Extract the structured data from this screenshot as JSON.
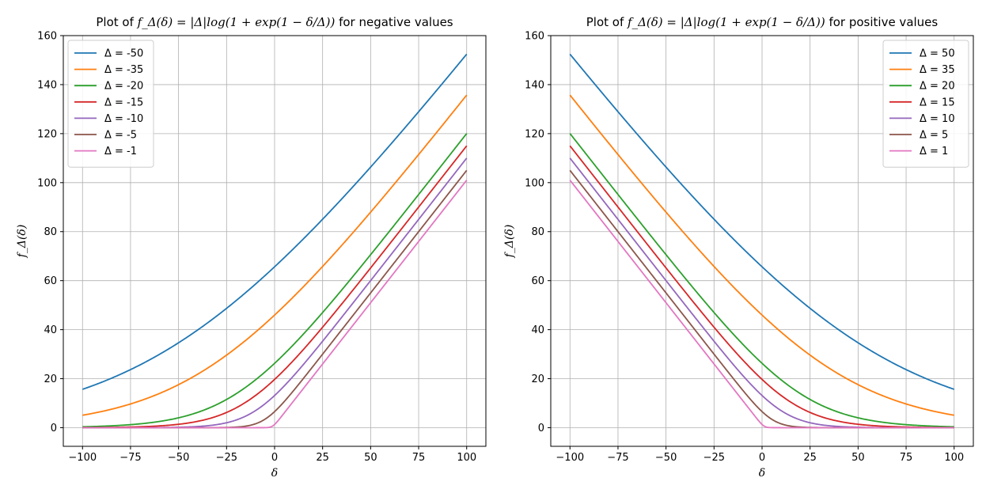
{
  "chart_data": [
    {
      "type": "line",
      "title_prefix": "Plot of ",
      "title_formula": "f_Δ(δ) = |Δ|log(1 + exp(1 − δ/Δ))",
      "title_suffix": " for negative values",
      "xlabel": "δ",
      "ylabel": "f_Δ(δ)",
      "xlim": [
        -110,
        110
      ],
      "ylim": [
        -7.6,
        160
      ],
      "xticks": [
        -100,
        -75,
        -50,
        -25,
        0,
        25,
        50,
        75,
        100
      ],
      "yticks": [
        0,
        20,
        40,
        60,
        80,
        100,
        120,
        140,
        160
      ],
      "grid": true,
      "legend_position": "upper-left",
      "x_range": [
        -100,
        100
      ],
      "series": [
        {
          "name": "Δ = -50",
          "delta": -50,
          "color": "#1f77b4"
        },
        {
          "name": "Δ = -35",
          "delta": -35,
          "color": "#ff7f0e"
        },
        {
          "name": "Δ = -20",
          "delta": -20,
          "color": "#2ca02c"
        },
        {
          "name": "Δ = -15",
          "delta": -15,
          "color": "#d62728"
        },
        {
          "name": "Δ = -10",
          "delta": -10,
          "color": "#9467bd"
        },
        {
          "name": "Δ = -5",
          "delta": -5,
          "color": "#8c564b"
        },
        {
          "name": "Δ = -1",
          "delta": -1,
          "color": "#e377c2"
        }
      ]
    },
    {
      "type": "line",
      "title_prefix": "Plot of ",
      "title_formula": "f_Δ(δ) = |Δ|log(1 + exp(1 − δ/Δ))",
      "title_suffix": " for positive values",
      "xlabel": "δ",
      "ylabel": "f_Δ(δ)",
      "xlim": [
        -110,
        110
      ],
      "ylim": [
        -7.6,
        160
      ],
      "xticks": [
        -100,
        -75,
        -50,
        -25,
        0,
        25,
        50,
        75,
        100
      ],
      "yticks": [
        0,
        20,
        40,
        60,
        80,
        100,
        120,
        140,
        160
      ],
      "grid": true,
      "legend_position": "upper-right",
      "x_range": [
        -100,
        100
      ],
      "series": [
        {
          "name": "Δ = 50",
          "delta": 50,
          "color": "#1f77b4"
        },
        {
          "name": "Δ = 35",
          "delta": 35,
          "color": "#ff7f0e"
        },
        {
          "name": "Δ = 20",
          "delta": 20,
          "color": "#2ca02c"
        },
        {
          "name": "Δ = 15",
          "delta": 15,
          "color": "#d62728"
        },
        {
          "name": "Δ = 10",
          "delta": 10,
          "color": "#9467bd"
        },
        {
          "name": "Δ = 5",
          "delta": 5,
          "color": "#8c564b"
        },
        {
          "name": "Δ = 1",
          "delta": 1,
          "color": "#e377c2"
        }
      ]
    }
  ]
}
